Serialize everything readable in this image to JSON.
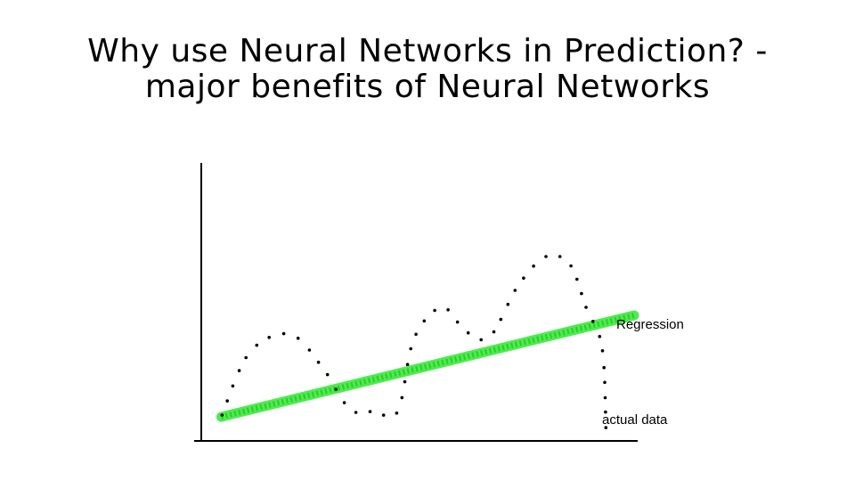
{
  "slide": {
    "title_line1": "Why use Neural Networks in Prediction? -",
    "title_line2": "major benefits of Neural Networks"
  },
  "chart_data": {
    "type": "line",
    "title": "",
    "xlabel": "",
    "ylabel": "",
    "grid": false,
    "series": [
      {
        "name": "actual data",
        "style": "dotted",
        "color": "#000000",
        "points": [
          [
            0.05,
            0.09
          ],
          [
            0.12,
            0.33
          ],
          [
            0.22,
            0.4
          ],
          [
            0.3,
            0.28
          ],
          [
            0.37,
            0.12
          ],
          [
            0.43,
            0.11
          ],
          [
            0.49,
            0.11
          ],
          [
            0.53,
            0.38
          ],
          [
            0.6,
            0.5
          ],
          [
            0.66,
            0.41
          ],
          [
            0.72,
            0.39
          ],
          [
            0.79,
            0.58
          ],
          [
            0.86,
            0.69
          ],
          [
            0.92,
            0.66
          ],
          [
            0.96,
            0.5
          ],
          [
            1.0,
            0.35
          ],
          [
            1.01,
            0.03
          ]
        ]
      },
      {
        "name": "Regression",
        "style": "thick",
        "color": "#33e633",
        "points": [
          [
            0.05,
            0.09
          ],
          [
            1.08,
            0.47
          ]
        ]
      }
    ]
  }
}
